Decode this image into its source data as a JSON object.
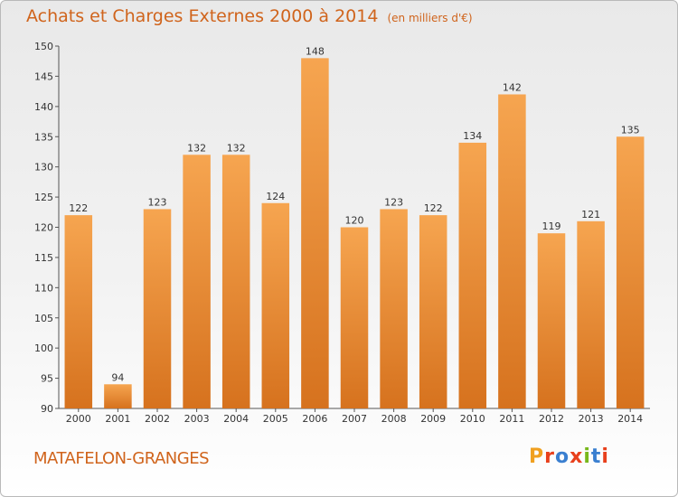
{
  "title": "Achats et Charges Externes 2000 à 2014",
  "subtitle": "(en milliers d'€)",
  "commune": "MATAFELON-GRANGES",
  "logo": {
    "text": "Proxiti",
    "colors": [
      "#f0a020",
      "#e8401c",
      "#3a7fd0",
      "#e8401c",
      "#78b81c",
      "#3a7fd0",
      "#e8401c"
    ]
  },
  "colors": {
    "bar_light": "#f6a550",
    "bar_dark": "#d6721e",
    "title": "#d0641c"
  },
  "chart_data": {
    "type": "bar",
    "title": "Achats et Charges Externes 2000 à 2014",
    "subtitle": "(en milliers d'€)",
    "categories": [
      "2000",
      "2001",
      "2002",
      "2003",
      "2004",
      "2005",
      "2006",
      "2007",
      "2008",
      "2009",
      "2010",
      "2011",
      "2012",
      "2013",
      "2014"
    ],
    "values": [
      122,
      94,
      123,
      132,
      132,
      124,
      148,
      120,
      123,
      122,
      134,
      142,
      119,
      121,
      135
    ],
    "ylim": [
      90,
      150
    ],
    "yticks": [
      90,
      95,
      100,
      105,
      110,
      115,
      120,
      125,
      130,
      135,
      140,
      145,
      150
    ],
    "grid": false,
    "xlabel": "",
    "ylabel": ""
  }
}
